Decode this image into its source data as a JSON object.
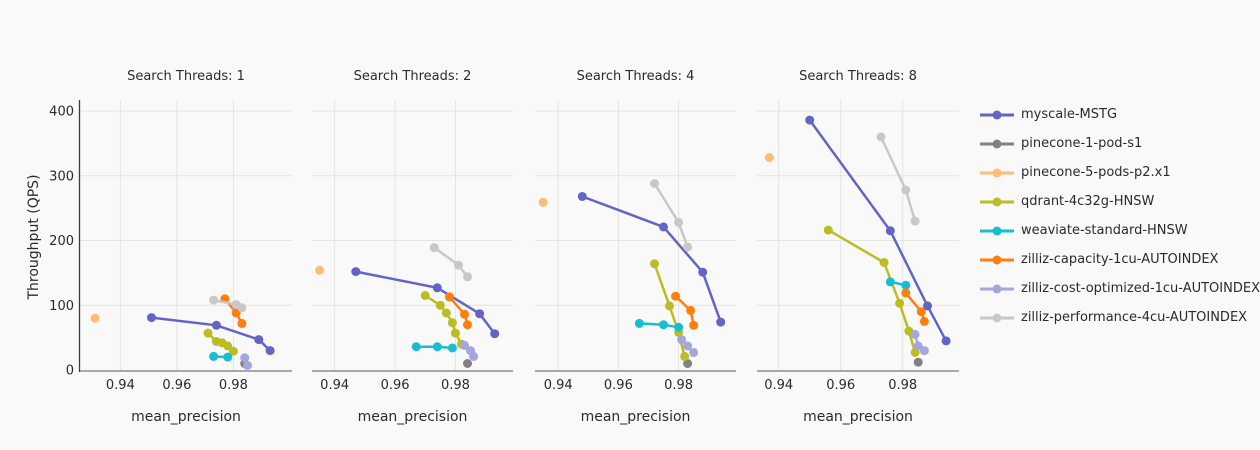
{
  "figure": {
    "background": "#f9f9f9",
    "grid_color": "#e4e4e4",
    "axis_line_color": "#a8a8a8",
    "spine_color": "#3b3b3b",
    "text_color": "#2b2b2b"
  },
  "chart_data": {
    "type": "line",
    "subtype": "faceted scatter+line, markers on lines",
    "facet_titles": [
      "Search Threads: 1",
      "Search Threads: 2",
      "Search Threads: 4",
      "Search Threads: 8"
    ],
    "xlabel": "mean_precision",
    "ylabel": "Throughput (QPS)",
    "xticks": [
      "0.94",
      "0.96",
      "0.98"
    ],
    "xtick_values": [
      0.94,
      0.96,
      0.98
    ],
    "yticks": [
      "0",
      "100",
      "200",
      "300",
      "400"
    ],
    "ytick_values": [
      0,
      100,
      200,
      300,
      400
    ],
    "ylim": [
      0,
      417
    ],
    "xlim": [
      0.928,
      1.0
    ],
    "grid": true,
    "legend_position": "right",
    "series": [
      {
        "name": "myscale-MSTG",
        "color": "#6265c6",
        "points_by_facet": [
          [
            [
              0.951,
              81
            ],
            [
              0.974,
              69
            ],
            [
              0.989,
              47
            ],
            [
              0.993,
              30
            ]
          ],
          [
            [
              0.947,
              152
            ],
            [
              0.974,
              127
            ],
            [
              0.988,
              87
            ],
            [
              0.993,
              56
            ]
          ],
          [
            [
              0.948,
              268
            ],
            [
              0.975,
              221
            ],
            [
              0.988,
              151
            ],
            [
              0.994,
              74
            ]
          ],
          [
            [
              0.95,
              386
            ],
            [
              0.976,
              215
            ],
            [
              0.988,
              99
            ],
            [
              0.994,
              45
            ]
          ]
        ]
      },
      {
        "name": "pinecone-1-pod-s1",
        "color": "#828282",
        "points_by_facet": [
          [
            [
              0.984,
              10
            ]
          ],
          [
            [
              0.984,
              10
            ]
          ],
          [
            [
              0.983,
              10
            ]
          ],
          [
            [
              0.985,
              12
            ]
          ]
        ]
      },
      {
        "name": "pinecone-5-pods-p2.x1",
        "color": "#ffbb78",
        "points_by_facet": [
          [
            [
              0.931,
              80
            ]
          ],
          [
            [
              0.935,
              154
            ]
          ],
          [
            [
              0.935,
              259
            ]
          ],
          [
            [
              0.937,
              328
            ]
          ]
        ]
      },
      {
        "name": "qdrant-4c32g-HNSW",
        "color": "#bcbd22",
        "points_by_facet": [
          [
            [
              0.971,
              57
            ],
            [
              0.974,
              44
            ],
            [
              0.976,
              42
            ],
            [
              0.978,
              37
            ],
            [
              0.98,
              29
            ]
          ],
          [
            [
              0.97,
              115
            ],
            [
              0.975,
              100
            ],
            [
              0.977,
              88
            ],
            [
              0.979,
              73
            ],
            [
              0.98,
              57
            ],
            [
              0.982,
              40
            ]
          ],
          [
            [
              0.972,
              164
            ],
            [
              0.977,
              99
            ],
            [
              0.98,
              58
            ],
            [
              0.982,
              21
            ]
          ],
          [
            [
              0.956,
              216
            ],
            [
              0.974,
              166
            ],
            [
              0.979,
              103
            ],
            [
              0.982,
              60
            ],
            [
              0.984,
              27
            ]
          ]
        ]
      },
      {
        "name": "weaviate-standard-HNSW",
        "color": "#17becf",
        "points_by_facet": [
          [
            [
              0.973,
              21
            ],
            [
              0.978,
              20
            ]
          ],
          [
            [
              0.967,
              36
            ],
            [
              0.974,
              36
            ],
            [
              0.979,
              34
            ]
          ],
          [
            [
              0.967,
              72
            ],
            [
              0.975,
              70
            ],
            [
              0.98,
              66
            ]
          ],
          [
            [
              0.976,
              136
            ],
            [
              0.981,
              131
            ]
          ]
        ]
      },
      {
        "name": "zilliz-capacity-1cu-AUTOINDEX",
        "color": "#ff7f0e",
        "points_by_facet": [
          [
            [
              0.977,
              110
            ],
            [
              0.981,
              88
            ],
            [
              0.983,
              72
            ]
          ],
          [
            [
              0.978,
              113
            ],
            [
              0.983,
              86
            ],
            [
              0.984,
              70
            ]
          ],
          [
            [
              0.979,
              114
            ],
            [
              0.984,
              92
            ],
            [
              0.985,
              69
            ]
          ],
          [
            [
              0.981,
              119
            ],
            [
              0.986,
              90
            ],
            [
              0.987,
              75
            ]
          ]
        ]
      },
      {
        "name": "zilliz-cost-optimized-1cu-AUTOINDEX",
        "color": "#a4a6de",
        "points_by_facet": [
          [
            [
              0.984,
              19
            ],
            [
              0.985,
              7
            ]
          ],
          [
            [
              0.983,
              38
            ],
            [
              0.985,
              30
            ],
            [
              0.986,
              21
            ]
          ],
          [
            [
              0.981,
              47
            ],
            [
              0.983,
              37
            ],
            [
              0.985,
              27
            ]
          ],
          [
            [
              0.984,
              55
            ],
            [
              0.985,
              37
            ],
            [
              0.987,
              30
            ]
          ]
        ]
      },
      {
        "name": "zilliz-performance-4cu-AUTOINDEX",
        "color": "#c8c8c8",
        "points_by_facet": [
          [
            [
              0.973,
              108
            ],
            [
              0.981,
              101
            ],
            [
              0.983,
              96
            ]
          ],
          [
            [
              0.973,
              189
            ],
            [
              0.981,
              162
            ],
            [
              0.984,
              144
            ]
          ],
          [
            [
              0.972,
              288
            ],
            [
              0.98,
              228
            ],
            [
              0.983,
              190
            ]
          ],
          [
            [
              0.973,
              360
            ],
            [
              0.981,
              278
            ],
            [
              0.984,
              230
            ]
          ]
        ]
      }
    ]
  }
}
